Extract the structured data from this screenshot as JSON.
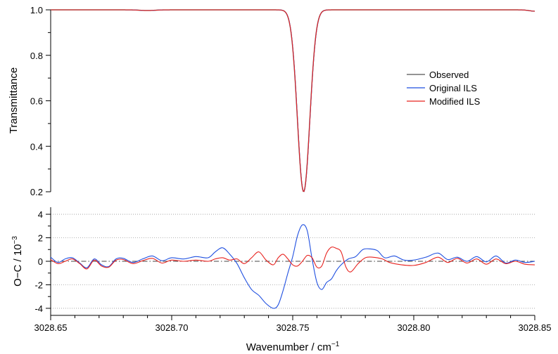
{
  "chart_data": [
    {
      "type": "line",
      "panel": "top",
      "xlabel": "Wavenumber / cm",
      "xlabel_sup": "−1",
      "ylabel": "Transmittance",
      "xlim": [
        3028.65,
        3028.85
      ],
      "ylim": [
        0.2,
        1.0
      ],
      "x_ticks": [
        3028.65,
        3028.7,
        3028.75,
        3028.8,
        3028.85
      ],
      "x_tick_labels": [
        "3028.65",
        "3028.70",
        "3028.75",
        "3028.80",
        "3028.85"
      ],
      "y_ticks": [
        0.2,
        0.4,
        0.6,
        0.8,
        1.0
      ],
      "y_tick_labels": [
        "0.2",
        "0.4",
        "0.6",
        "0.8",
        "1.0"
      ],
      "grid": false,
      "legend_position": "right",
      "line_profile": {
        "center": 3028.7545,
        "min_transmittance": 0.2,
        "half_width_at_half_depth": 0.003
      },
      "series": [
        {
          "name": "Observed",
          "color": "#555555"
        },
        {
          "name": "Original ILS",
          "color": "#1f4fe0"
        },
        {
          "name": "Modified ILS",
          "color": "#e8231f"
        }
      ]
    },
    {
      "type": "line",
      "panel": "bottom",
      "xlabel": "Wavenumber / cm",
      "ylabel": "O−C / 10",
      "ylabel_sup": "−3",
      "xlim": [
        3028.65,
        3028.85
      ],
      "ylim": [
        -4.6,
        4.6
      ],
      "y_ticks": [
        -4,
        -2,
        0,
        2,
        4
      ],
      "y_tick_labels": [
        "-4",
        "-2",
        "0",
        "2",
        "4"
      ],
      "grid": true,
      "zero_line_style": "dash-dot",
      "series": [
        {
          "name": "Original ILS",
          "color": "#1f4fe0",
          "points": [
            [
              3028.65,
              0.35
            ],
            [
              3028.653,
              -0.1
            ],
            [
              3028.656,
              0.2
            ],
            [
              3028.659,
              0.3
            ],
            [
              3028.662,
              -0.15
            ],
            [
              3028.665,
              -0.55
            ],
            [
              3028.668,
              0.2
            ],
            [
              3028.671,
              -0.3
            ],
            [
              3028.674,
              -0.45
            ],
            [
              3028.677,
              0.2
            ],
            [
              3028.68,
              0.25
            ],
            [
              3028.684,
              -0.1
            ],
            [
              3028.688,
              0.2
            ],
            [
              3028.692,
              0.45
            ],
            [
              3028.696,
              0.05
            ],
            [
              3028.7,
              0.3
            ],
            [
              3028.705,
              0.2
            ],
            [
              3028.71,
              0.4
            ],
            [
              3028.715,
              0.3
            ],
            [
              3028.718,
              0.8
            ],
            [
              3028.721,
              1.15
            ],
            [
              3028.724,
              0.6
            ],
            [
              3028.727,
              -0.2
            ],
            [
              3028.73,
              -1.4
            ],
            [
              3028.733,
              -2.4
            ],
            [
              3028.736,
              -2.9
            ],
            [
              3028.739,
              -3.6
            ],
            [
              3028.742,
              -4.0
            ],
            [
              3028.744,
              -3.7
            ],
            [
              3028.746,
              -2.5
            ],
            [
              3028.748,
              -1.0
            ],
            [
              3028.75,
              0.4
            ],
            [
              3028.752,
              2.2
            ],
            [
              3028.754,
              3.1
            ],
            [
              3028.756,
              2.6
            ],
            [
              3028.758,
              0.2
            ],
            [
              3028.76,
              -1.8
            ],
            [
              3028.762,
              -2.4
            ],
            [
              3028.764,
              -1.8
            ],
            [
              3028.766,
              -1.5
            ],
            [
              3028.768,
              -0.8
            ],
            [
              3028.77,
              -0.3
            ],
            [
              3028.773,
              0.2
            ],
            [
              3028.776,
              0.4
            ],
            [
              3028.779,
              1.0
            ],
            [
              3028.782,
              1.05
            ],
            [
              3028.785,
              0.9
            ],
            [
              3028.788,
              0.3
            ],
            [
              3028.792,
              0.45
            ],
            [
              3028.796,
              0.1
            ],
            [
              3028.8,
              0.1
            ],
            [
              3028.805,
              0.35
            ],
            [
              3028.81,
              0.7
            ],
            [
              3028.814,
              0.15
            ],
            [
              3028.818,
              0.35
            ],
            [
              3028.822,
              0.0
            ],
            [
              3028.826,
              0.4
            ],
            [
              3028.83,
              -0.05
            ],
            [
              3028.834,
              0.45
            ],
            [
              3028.838,
              -0.15
            ],
            [
              3028.842,
              0.1
            ],
            [
              3028.846,
              -0.1
            ],
            [
              3028.85,
              0.0
            ]
          ]
        },
        {
          "name": "Modified ILS",
          "color": "#e8231f",
          "points": [
            [
              3028.65,
              0.15
            ],
            [
              3028.653,
              -0.2
            ],
            [
              3028.656,
              0.0
            ],
            [
              3028.659,
              0.2
            ],
            [
              3028.662,
              -0.2
            ],
            [
              3028.665,
              -0.65
            ],
            [
              3028.668,
              0.1
            ],
            [
              3028.671,
              -0.4
            ],
            [
              3028.674,
              -0.5
            ],
            [
              3028.677,
              0.1
            ],
            [
              3028.68,
              0.15
            ],
            [
              3028.684,
              -0.2
            ],
            [
              3028.688,
              0.05
            ],
            [
              3028.692,
              0.25
            ],
            [
              3028.696,
              -0.15
            ],
            [
              3028.7,
              0.1
            ],
            [
              3028.705,
              0.0
            ],
            [
              3028.71,
              0.1
            ],
            [
              3028.715,
              0.0
            ],
            [
              3028.718,
              0.2
            ],
            [
              3028.721,
              0.3
            ],
            [
              3028.724,
              0.1
            ],
            [
              3028.727,
              0.2
            ],
            [
              3028.73,
              -0.2
            ],
            [
              3028.733,
              0.3
            ],
            [
              3028.736,
              0.8
            ],
            [
              3028.739,
              0.1
            ],
            [
              3028.742,
              -0.3
            ],
            [
              3028.744,
              0.3
            ],
            [
              3028.746,
              0.6
            ],
            [
              3028.748,
              0.2
            ],
            [
              3028.75,
              -0.3
            ],
            [
              3028.752,
              -0.4
            ],
            [
              3028.754,
              0.0
            ],
            [
              3028.756,
              0.5
            ],
            [
              3028.758,
              0.3
            ],
            [
              3028.76,
              -0.5
            ],
            [
              3028.762,
              -0.4
            ],
            [
              3028.764,
              0.7
            ],
            [
              3028.766,
              1.2
            ],
            [
              3028.768,
              1.1
            ],
            [
              3028.77,
              0.8
            ],
            [
              3028.772,
              -0.5
            ],
            [
              3028.774,
              -0.9
            ],
            [
              3028.777,
              -0.2
            ],
            [
              3028.78,
              0.3
            ],
            [
              3028.783,
              0.35
            ],
            [
              3028.787,
              0.2
            ],
            [
              3028.79,
              -0.1
            ],
            [
              3028.795,
              -0.3
            ],
            [
              3028.8,
              -0.35
            ],
            [
              3028.805,
              -0.1
            ],
            [
              3028.81,
              0.35
            ],
            [
              3028.814,
              -0.1
            ],
            [
              3028.818,
              0.25
            ],
            [
              3028.822,
              -0.15
            ],
            [
              3028.826,
              0.2
            ],
            [
              3028.83,
              -0.25
            ],
            [
              3028.834,
              0.2
            ],
            [
              3028.838,
              -0.2
            ],
            [
              3028.842,
              0.0
            ],
            [
              3028.846,
              -0.25
            ],
            [
              3028.85,
              -0.3
            ]
          ]
        }
      ]
    }
  ]
}
